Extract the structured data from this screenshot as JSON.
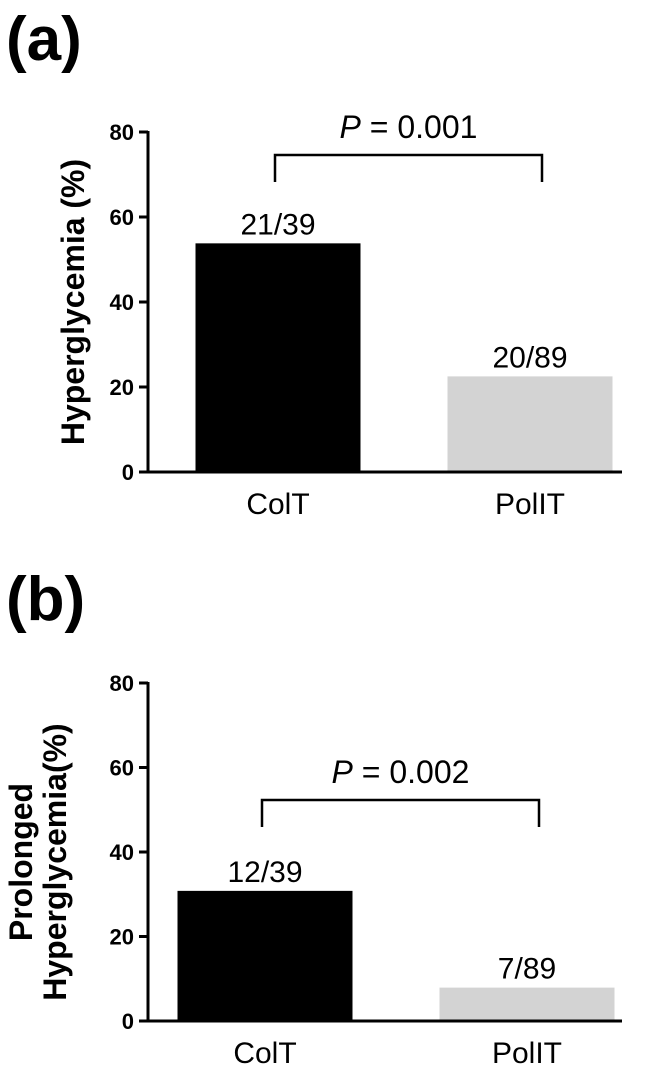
{
  "chart_data": [
    {
      "type": "bar",
      "panel_label": "(a)",
      "categories": [
        "ColT",
        "PolIT"
      ],
      "values": [
        53.8,
        22.5
      ],
      "data_labels": [
        "21/39",
        "20/89"
      ],
      "colors": [
        "#000000",
        "#d3d3d3"
      ],
      "ylabel_lines": [
        "Hyperglycemia (%)"
      ],
      "ylim": [
        0,
        80
      ],
      "yticks": [
        0,
        20,
        40,
        60,
        80
      ],
      "annotation": {
        "p_symbol": "P",
        "p_rest": " = 0.001"
      },
      "grid": false,
      "legend": "none"
    },
    {
      "type": "bar",
      "panel_label": "(b)",
      "categories": [
        "ColT",
        "PolIT"
      ],
      "values": [
        30.8,
        7.9
      ],
      "data_labels": [
        "12/39",
        "7/89"
      ],
      "colors": [
        "#000000",
        "#d3d3d3"
      ],
      "ylabel_lines": [
        "Prolonged",
        "Hyperglycemia(%)"
      ],
      "ylim": [
        0,
        80
      ],
      "yticks": [
        0,
        20,
        40,
        60,
        80
      ],
      "annotation": {
        "p_symbol": "P",
        "p_rest": " = 0.002"
      },
      "grid": false,
      "legend": "none"
    }
  ]
}
